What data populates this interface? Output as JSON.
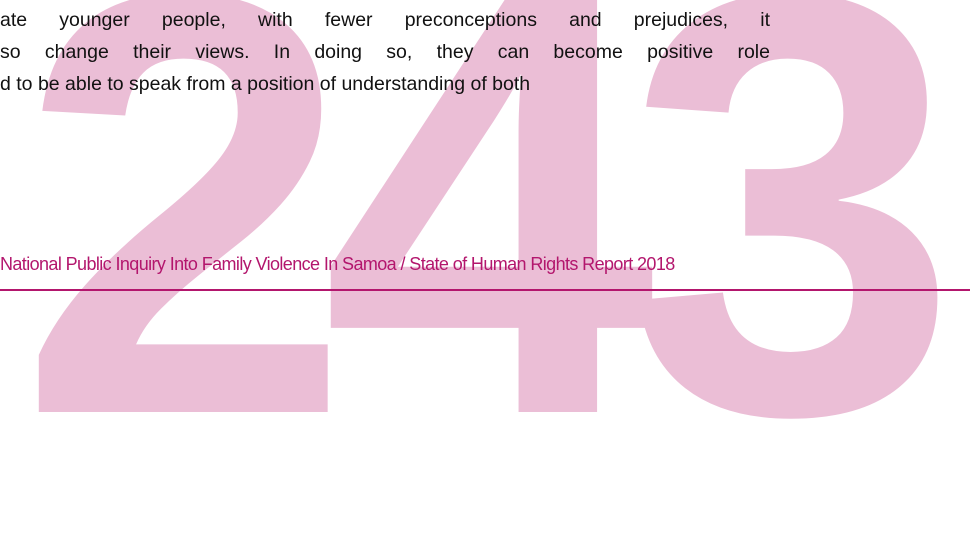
{
  "page_number": "243",
  "body": [
    "ate younger people, with fewer preconceptions and prejudices, it",
    "so change their views. In doing so, they can become positive role",
    "d to be able to speak from a position of understanding of both"
  ],
  "footer": "National Public Inquiry Into Family Violence In Samoa / State of Human Rights Report 2018"
}
